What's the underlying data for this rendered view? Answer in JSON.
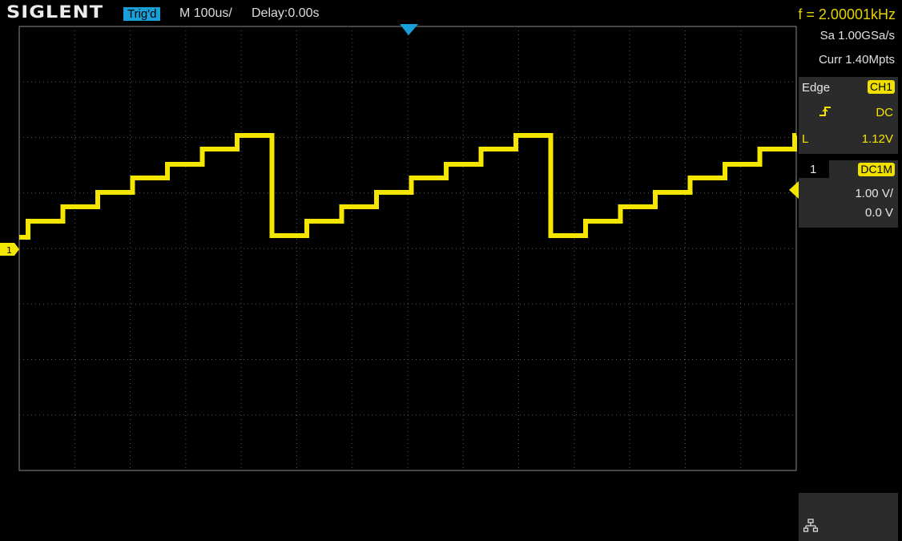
{
  "header": {
    "logo": "SIGLENT",
    "trig_status": "Trig'd",
    "timebase": "M 100us/",
    "delay": "Delay:0.00s",
    "frequency": "f = 2.00001kHz"
  },
  "acquisition": {
    "sample_rate": "Sa 1.00GSa/s",
    "memory_depth": "Curr 1.40Mpts"
  },
  "trigger": {
    "type": "Edge",
    "source": "CH1",
    "coupling": "DC",
    "level_label": "L",
    "level_value": "1.12V"
  },
  "channel1": {
    "number": "1",
    "coupling": "DC1M",
    "scale": "1.00 V/",
    "offset": "0.0 V",
    "marker": "1"
  },
  "colors": {
    "trace": "#f5e600",
    "trigger_marker": "#1aa0d8",
    "grid": "#5a5a5a",
    "panel": "#2b2b2b"
  },
  "icons": {
    "network": "network-icon",
    "trigger_edge": "rising-edge-icon"
  }
}
